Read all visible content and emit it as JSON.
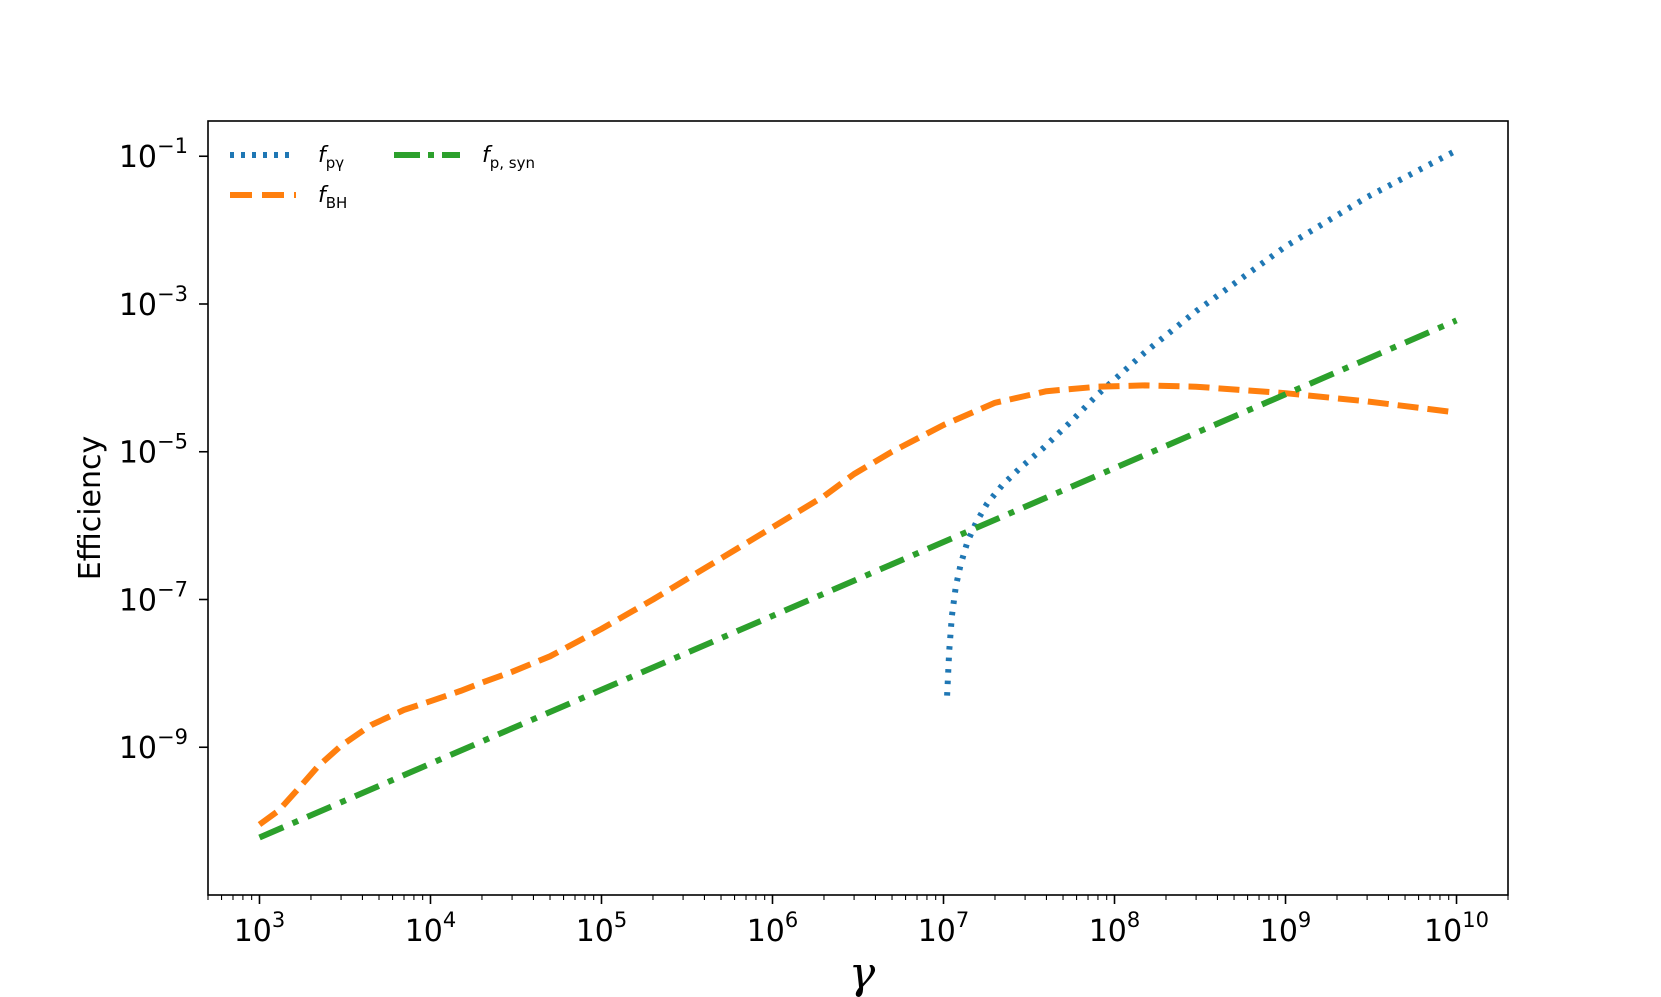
{
  "chart_data": {
    "type": "line",
    "xscale": "log",
    "yscale": "log",
    "xlabel": "γ",
    "ylabel": "Efficiency",
    "xlim": [
      500,
      20000000000
    ],
    "ylim": [
      1e-11,
      0.3
    ],
    "x_ticks": [
      {
        "value": 1000,
        "base": "10",
        "exp": "3"
      },
      {
        "value": 10000,
        "base": "10",
        "exp": "4"
      },
      {
        "value": 100000,
        "base": "10",
        "exp": "5"
      },
      {
        "value": 1000000,
        "base": "10",
        "exp": "6"
      },
      {
        "value": 10000000,
        "base": "10",
        "exp": "7"
      },
      {
        "value": 100000000,
        "base": "10",
        "exp": "8"
      },
      {
        "value": 1000000000,
        "base": "10",
        "exp": "9"
      },
      {
        "value": 10000000000,
        "base": "10",
        "exp": "10"
      }
    ],
    "y_ticks": [
      {
        "value": 1e-09,
        "base": "10",
        "exp": "−9"
      },
      {
        "value": 1e-07,
        "base": "10",
        "exp": "−7"
      },
      {
        "value": 1e-05,
        "base": "10",
        "exp": "−5"
      },
      {
        "value": 0.001,
        "base": "10",
        "exp": "−3"
      },
      {
        "value": 0.1,
        "base": "10",
        "exp": "−1"
      }
    ],
    "legend": {
      "placement": "upper-left",
      "columns": 2
    },
    "series": [
      {
        "key": "fpg",
        "name": "f",
        "name_sub": "pγ",
        "style": "dotted",
        "color": "#1f77b4",
        "x": [
          10500000,
          10800000,
          11200000,
          11800000,
          12600000,
          13800000,
          15500000,
          18000000,
          22000000,
          28000000,
          38000000,
          55000000,
          80000000,
          150000000,
          300000000,
          1000000000,
          3000000000,
          10000000000
        ],
        "y": [
          5e-09,
          2e-08,
          6e-08,
          1.5e-07,
          3e-07,
          6e-07,
          1.1e-06,
          2e-06,
          3.5e-06,
          6e-06,
          1.1e-05,
          2.5e-05,
          6e-05,
          0.00022,
          0.0008,
          0.006,
          0.028,
          0.12
        ]
      },
      {
        "key": "fbh",
        "name": "f",
        "name_sub": "BH",
        "style": "dashed",
        "color": "#ff7f0e",
        "x": [
          1000,
          1300,
          1700,
          2200,
          3000,
          4500,
          7000,
          10000,
          15000,
          20000,
          30000,
          50000,
          100000,
          200000,
          500000,
          1000000,
          2000000,
          3000000,
          5000000,
          10000000,
          20000000,
          40000000,
          80000000,
          150000000,
          300000000,
          1000000000,
          3000000000,
          10000000000
        ],
        "y": [
          9e-11,
          1.4e-10,
          2.8e-10,
          5.5e-10,
          1.05e-09,
          2e-09,
          3.2e-09,
          4.2e-09,
          5.8e-09,
          7.5e-09,
          1.05e-08,
          1.7e-08,
          4e-08,
          1e-07,
          3.6e-07,
          9.5e-07,
          2.5e-06,
          5e-06,
          1e-05,
          2.3e-05,
          4.6e-05,
          6.6e-05,
          7.6e-05,
          7.9e-05,
          7.6e-05,
          6.2e-05,
          4.8e-05,
          3.4e-05
        ]
      },
      {
        "key": "fpsyn",
        "name": "f",
        "name_sub": "p, syn",
        "style": "dashdot",
        "color": "#2ca02c",
        "x": [
          1000,
          10000000000
        ],
        "y": [
          6e-11,
          0.0006
        ]
      }
    ]
  }
}
